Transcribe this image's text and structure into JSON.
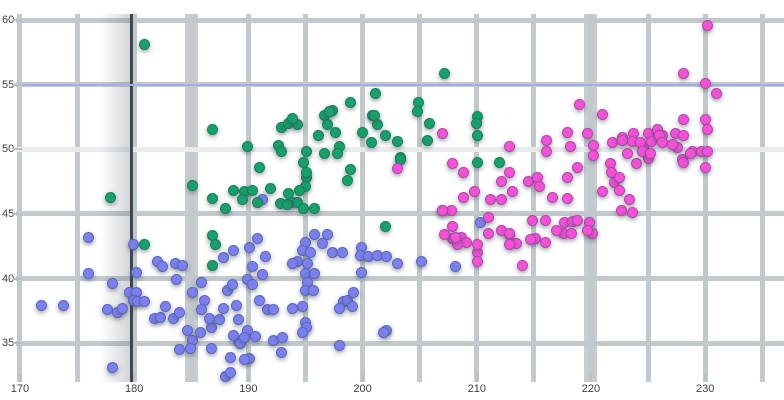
{
  "chart_data": {
    "type": "scatter",
    "title": "",
    "xlabel": "",
    "ylabel": "",
    "legend": false,
    "grid": true,
    "xlim": [
      168.25,
      236.9
    ],
    "ylim": [
      30.6,
      61.55
    ],
    "x_ticks": [
      170,
      180,
      190,
      200,
      210,
      220,
      230
    ],
    "x_tick_labels": [
      "170",
      "180",
      "190",
      "200",
      "210",
      "220",
      "230"
    ],
    "y_ticks": [
      35,
      40,
      45,
      50,
      55,
      60
    ],
    "y_tick_labels": [
      "35",
      "40",
      "45",
      "50",
      "55",
      "60"
    ],
    "x_gridlines": [
      170,
      175,
      180,
      185,
      190,
      195,
      200,
      205,
      210,
      215,
      220,
      225,
      230,
      235
    ],
    "x_gridlines_thick": [
      185,
      220
    ],
    "y_gridlines": [
      35,
      40,
      45,
      50,
      55,
      60
    ],
    "y_gridline_bright": 50,
    "annotations": {
      "dark_vline_x": 180,
      "accent_hline_y": 55,
      "accent_color": "#a6aee8",
      "dark_line_color": "#3f464e"
    },
    "grid_color": "#c2c9cc",
    "series": [
      {
        "name": "blue-cluster",
        "color": "#7a80f0",
        "points": [
          [
            176.0,
            43.2
          ],
          [
            179.9,
            42.6
          ],
          [
            182.0,
            41.3
          ],
          [
            180.2,
            40.5
          ],
          [
            182.5,
            40.9
          ],
          [
            183.6,
            41.2
          ],
          [
            184.2,
            41.0
          ],
          [
            176.0,
            40.4
          ],
          [
            178.1,
            39.6
          ],
          [
            179.6,
            38.9
          ],
          [
            180.2,
            38.9
          ],
          [
            177.7,
            37.6
          ],
          [
            178.5,
            37.4
          ],
          [
            179.0,
            37.7
          ],
          [
            179.9,
            38.3
          ],
          [
            180.3,
            38.2
          ],
          [
            180.9,
            38.2
          ],
          [
            181.8,
            36.9
          ],
          [
            182.3,
            37.0
          ],
          [
            171.9,
            37.9
          ],
          [
            173.8,
            37.9
          ],
          [
            182.7,
            37.8
          ],
          [
            183.4,
            36.9
          ],
          [
            183.7,
            39.9
          ],
          [
            185.9,
            39.7
          ],
          [
            185.1,
            38.9
          ],
          [
            186.2,
            38.3
          ],
          [
            185.9,
            37.6
          ],
          [
            184.0,
            37.4
          ],
          [
            184.7,
            36.0
          ],
          [
            185.1,
            35.2
          ],
          [
            185.8,
            35.8
          ],
          [
            186.8,
            36.2
          ],
          [
            186.6,
            36.9
          ],
          [
            187.5,
            36.8
          ],
          [
            187.8,
            37.7
          ],
          [
            188.2,
            39.1
          ],
          [
            188.6,
            39.5
          ],
          [
            189.0,
            37.9
          ],
          [
            189.1,
            36.8
          ],
          [
            189.9,
            36.0
          ],
          [
            189.1,
            35.2
          ],
          [
            190.1,
            33.8
          ],
          [
            184.0,
            34.5
          ],
          [
            184.9,
            34.6
          ],
          [
            186.8,
            34.6
          ],
          [
            188.4,
            33.9
          ],
          [
            188.0,
            32.4
          ],
          [
            178.1,
            33.1
          ],
          [
            187.8,
            41.6
          ],
          [
            188.7,
            42.2
          ],
          [
            190.1,
            42.4
          ],
          [
            190.8,
            43.1
          ],
          [
            190.4,
            40.9
          ],
          [
            191.2,
            40.3
          ],
          [
            191.7,
            37.6
          ],
          [
            192.2,
            37.6
          ],
          [
            191.0,
            38.3
          ],
          [
            189.9,
            39.9
          ],
          [
            190.4,
            39.5
          ],
          [
            191.5,
            41.7
          ],
          [
            195.0,
            42.8
          ],
          [
            195.8,
            43.4
          ],
          [
            196.9,
            43.4
          ],
          [
            196.5,
            42.7
          ],
          [
            194.7,
            42.2
          ],
          [
            195.4,
            42.0
          ],
          [
            194.3,
            41.3
          ],
          [
            195.2,
            41.2
          ],
          [
            193.9,
            41.2
          ],
          [
            197.4,
            42.0
          ],
          [
            198.2,
            42.0
          ],
          [
            195.0,
            40.4
          ],
          [
            195.8,
            40.4
          ],
          [
            195.2,
            39.7
          ],
          [
            195.0,
            39.1
          ],
          [
            195.7,
            39.1
          ],
          [
            194.7,
            37.8
          ],
          [
            193.9,
            37.7
          ],
          [
            195.0,
            36.6
          ],
          [
            195.1,
            36.2
          ],
          [
            198.0,
            34.8
          ],
          [
            198.3,
            38.2
          ],
          [
            198.7,
            38.3
          ],
          [
            199.2,
            38.9
          ],
          [
            199.1,
            37.8
          ],
          [
            198.0,
            37.7
          ],
          [
            199.9,
            42.4
          ],
          [
            199.8,
            41.8
          ],
          [
            200.5,
            41.7
          ],
          [
            201.3,
            41.8
          ],
          [
            202.1,
            41.7
          ],
          [
            199.9,
            40.5
          ],
          [
            203.1,
            41.2
          ],
          [
            205.2,
            41.3
          ],
          [
            208.1,
            40.9
          ],
          [
            202.1,
            36.0
          ],
          [
            188.7,
            35.6
          ],
          [
            189.3,
            35.0
          ],
          [
            189.7,
            35.4
          ],
          [
            190.6,
            35.5
          ],
          [
            189.7,
            33.7
          ],
          [
            192.2,
            35.2
          ],
          [
            192.9,
            34.3
          ],
          [
            193.0,
            35.4
          ],
          [
            194.7,
            35.8
          ],
          [
            201.8,
            35.8
          ],
          [
            188.4,
            32.7
          ],
          [
            210.3,
            44.3
          ],
          [
            191.2,
            46.1
          ],
          [
            193.9,
            45.9
          ]
        ]
      },
      {
        "name": "green-cluster",
        "color": "#16a169",
        "points": [
          [
            180.9,
            58.1
          ],
          [
            186.9,
            51.5
          ],
          [
            189.9,
            50.2
          ],
          [
            192.9,
            51.7
          ],
          [
            193.5,
            52.0
          ],
          [
            194.3,
            51.9
          ],
          [
            192.6,
            50.3
          ],
          [
            192.9,
            49.8
          ],
          [
            195.1,
            49.8
          ],
          [
            196.1,
            51.1
          ],
          [
            196.7,
            52.6
          ],
          [
            196.9,
            51.9
          ],
          [
            197.4,
            53.0
          ],
          [
            197.6,
            51.3
          ],
          [
            198.0,
            50.2
          ],
          [
            196.7,
            49.7
          ],
          [
            197.8,
            49.7
          ],
          [
            198.9,
            53.6
          ],
          [
            200.0,
            51.3
          ],
          [
            200.9,
            52.6
          ],
          [
            201.3,
            51.9
          ],
          [
            202.0,
            51.1
          ],
          [
            203.1,
            50.6
          ],
          [
            203.3,
            49.4
          ],
          [
            204.9,
            53.6
          ],
          [
            204.8,
            52.9
          ],
          [
            205.9,
            52.0
          ],
          [
            200.8,
            50.5
          ],
          [
            191.0,
            48.6
          ],
          [
            194.8,
            49.0
          ],
          [
            195.1,
            47.8
          ],
          [
            195.0,
            47.1
          ],
          [
            198.9,
            48.4
          ],
          [
            198.7,
            47.6
          ],
          [
            188.7,
            46.8
          ],
          [
            189.7,
            46.7
          ],
          [
            190.4,
            46.8
          ],
          [
            186.9,
            46.2
          ],
          [
            188.0,
            45.4
          ],
          [
            189.5,
            46.1
          ],
          [
            190.8,
            45.9
          ],
          [
            191.9,
            47.0
          ],
          [
            192.8,
            45.8
          ],
          [
            193.4,
            45.7
          ],
          [
            194.3,
            45.9
          ],
          [
            194.8,
            45.4
          ],
          [
            195.8,
            45.4
          ],
          [
            194.5,
            46.8
          ],
          [
            193.5,
            46.6
          ],
          [
            195.1,
            48.2
          ],
          [
            203.3,
            49.2
          ],
          [
            202.0,
            44.0
          ],
          [
            205.7,
            50.7
          ],
          [
            201.1,
            54.3
          ],
          [
            197.1,
            52.9
          ],
          [
            201.0,
            52.6
          ],
          [
            207.2,
            55.9
          ],
          [
            210.1,
            52.5
          ],
          [
            210.0,
            52.0
          ],
          [
            210.1,
            51.1
          ],
          [
            177.9,
            46.3
          ],
          [
            185.1,
            47.2
          ],
          [
            180.9,
            42.6
          ],
          [
            186.9,
            43.3
          ],
          [
            187.1,
            42.6
          ],
          [
            186.9,
            41.0
          ],
          [
            210.1,
            49.0
          ],
          [
            212.0,
            49.0
          ],
          [
            193.9,
            52.4
          ]
        ]
      },
      {
        "name": "magenta-cluster",
        "color": "#f451d8",
        "points": [
          [
            207.9,
            43.1
          ],
          [
            208.7,
            43.2
          ],
          [
            209.1,
            42.8
          ],
          [
            208.3,
            42.6
          ],
          [
            210.1,
            42.0
          ],
          [
            210.1,
            41.3
          ],
          [
            212.9,
            43.4
          ],
          [
            213.5,
            42.7
          ],
          [
            215.1,
            43.1
          ],
          [
            214.0,
            41.0
          ],
          [
            217.7,
            44.3
          ],
          [
            218.4,
            44.4
          ],
          [
            217.6,
            43.5
          ],
          [
            218.3,
            43.5
          ],
          [
            219.9,
            44.3
          ],
          [
            220.1,
            43.5
          ],
          [
            203.1,
            48.5
          ],
          [
            207.0,
            45.3
          ],
          [
            219.0,
            53.5
          ],
          [
            221.0,
            52.7
          ],
          [
            230.2,
            59.6
          ],
          [
            228.1,
            55.9
          ],
          [
            230.0,
            55.1
          ],
          [
            231.0,
            54.3
          ],
          [
            207.0,
            51.2
          ],
          [
            207.9,
            48.9
          ],
          [
            208.8,
            48.2
          ],
          [
            216.1,
            50.7
          ],
          [
            216.1,
            49.8
          ],
          [
            217.9,
            51.3
          ],
          [
            218.2,
            50.2
          ],
          [
            219.7,
            51.2
          ],
          [
            220.2,
            50.3
          ],
          [
            220.2,
            49.5
          ],
          [
            221.9,
            50.5
          ],
          [
            222.8,
            50.9
          ],
          [
            223.7,
            51.2
          ],
          [
            224.6,
            50.1
          ],
          [
            225.0,
            51.2
          ],
          [
            225.8,
            51.5
          ],
          [
            226.3,
            51.1
          ],
          [
            227.4,
            51.2
          ],
          [
            228.0,
            49.2
          ],
          [
            224.0,
            48.9
          ],
          [
            225.0,
            49.3
          ],
          [
            221.7,
            48.9
          ],
          [
            221.8,
            48.2
          ],
          [
            217.9,
            47.8
          ],
          [
            218.8,
            48.6
          ],
          [
            214.5,
            47.5
          ],
          [
            215.3,
            47.8
          ],
          [
            215.5,
            47.1
          ],
          [
            216.6,
            46.3
          ],
          [
            217.9,
            46.2
          ],
          [
            221.0,
            46.7
          ],
          [
            222.1,
            47.4
          ],
          [
            212.9,
            50.2
          ],
          [
            212.9,
            48.2
          ],
          [
            212.2,
            47.5
          ],
          [
            211.2,
            46.1
          ],
          [
            212.2,
            46.1
          ],
          [
            213.1,
            46.7
          ],
          [
            211.0,
            44.7
          ],
          [
            212.2,
            43.7
          ],
          [
            212.9,
            43.5
          ],
          [
            211.0,
            43.5
          ],
          [
            209.8,
            46.7
          ],
          [
            208.8,
            46.3
          ],
          [
            207.8,
            45.3
          ],
          [
            207.0,
            45.3
          ],
          [
            207.9,
            44.0
          ],
          [
            207.2,
            43.4
          ],
          [
            208.1,
            43.2
          ],
          [
            210.1,
            42.6
          ],
          [
            212.9,
            42.6
          ],
          [
            214.9,
            44.5
          ],
          [
            216.0,
            44.5
          ],
          [
            217.0,
            43.7
          ],
          [
            218.8,
            44.5
          ],
          [
            219.7,
            43.7
          ],
          [
            214.7,
            43.0
          ],
          [
            216.0,
            42.8
          ],
          [
            222.7,
            45.3
          ],
          [
            227.6,
            50.1
          ],
          [
            228.1,
            52.3
          ],
          [
            230.0,
            52.3
          ],
          [
            230.2,
            51.5
          ],
          [
            228.1,
            51.1
          ],
          [
            222.8,
            50.7
          ],
          [
            223.6,
            50.6
          ],
          [
            224.3,
            50.5
          ],
          [
            225.3,
            50.6
          ],
          [
            226.0,
            51.1
          ],
          [
            226.3,
            50.5
          ],
          [
            224.5,
            49.8
          ],
          [
            225.2,
            49.7
          ],
          [
            223.2,
            49.7
          ],
          [
            227.1,
            50.4
          ],
          [
            228.9,
            49.8
          ],
          [
            229.7,
            49.8
          ],
          [
            230.2,
            49.8
          ],
          [
            228.1,
            49.0
          ],
          [
            228.7,
            49.7
          ],
          [
            230.0,
            48.6
          ],
          [
            222.5,
            47.8
          ],
          [
            222.5,
            46.8
          ],
          [
            223.4,
            46.1
          ],
          [
            223.6,
            45.1
          ]
        ]
      }
    ]
  }
}
